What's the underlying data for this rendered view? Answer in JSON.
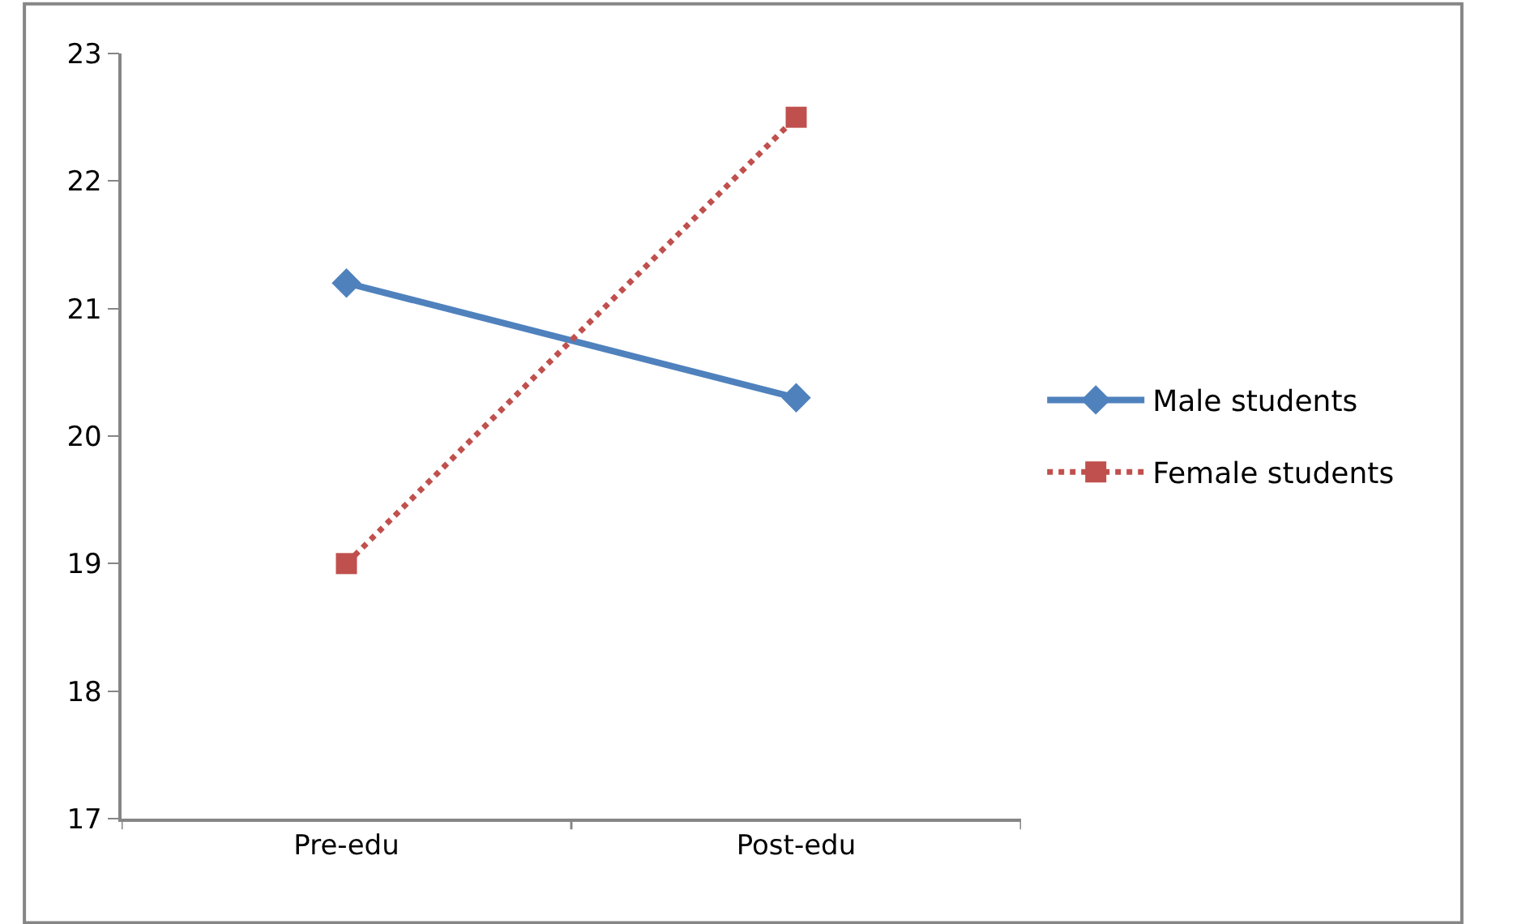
{
  "chart_data": {
    "type": "line",
    "categories": [
      "Pre-edu",
      "Post-edu"
    ],
    "series": [
      {
        "name": "Male students",
        "color": "#4f81bd",
        "values": [
          21.2,
          20.3
        ],
        "marker": "diamond",
        "line_style": "solid"
      },
      {
        "name": "Female students",
        "color": "#c0504d",
        "values": [
          19.0,
          22.5
        ],
        "marker": "square",
        "line_style": "dotted"
      }
    ],
    "ylim": [
      17,
      23
    ],
    "yticks": [
      17,
      18,
      19,
      20,
      21,
      22,
      23
    ],
    "legend": "right"
  }
}
